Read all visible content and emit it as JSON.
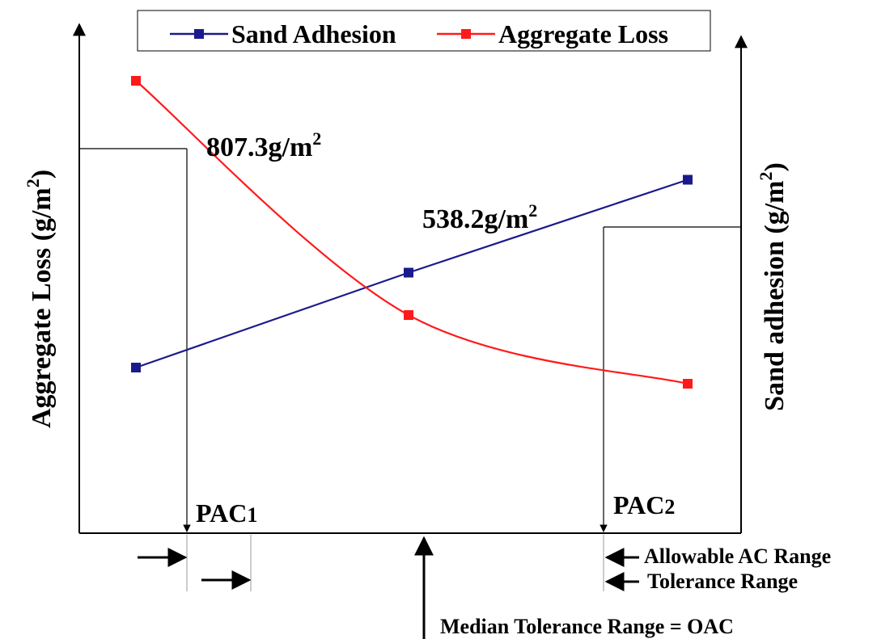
{
  "chart_data": {
    "type": "line",
    "x_categories": [
      "",
      "",
      ""
    ],
    "series": [
      {
        "name": "Sand Adhesion",
        "color": "#1a1a8c",
        "marker": "square",
        "values": [
          0.41,
          0.645,
          0.875
        ]
      },
      {
        "name": "Aggregate Loss",
        "color": "#ff1a1a",
        "marker": "square",
        "values": [
          1.12,
          0.54,
          0.37
        ]
      }
    ],
    "y_left_label": "Aggregate Loss (g/m",
    "y_left_label_sup": "2",
    "y_left_label_end": ")",
    "y_right_label": "Sand adhesion (g/m",
    "y_right_label_sup": "2",
    "y_right_label_end": ")",
    "legend_position": "top",
    "grid": false,
    "annotations": {
      "value_loss": "807.3g/m",
      "value_loss_sup": "2",
      "value_adhesion": "538.2g/m",
      "value_adhesion_sup": "2",
      "pac1": "PAC",
      "pac1_sub": "1",
      "pac2": "PAC",
      "pac2_sub": "2",
      "allowable_range": "Allowable AC Range",
      "tolerance_range": "Tolerance Range",
      "median": "Median Tolerance Range = OAC"
    }
  }
}
